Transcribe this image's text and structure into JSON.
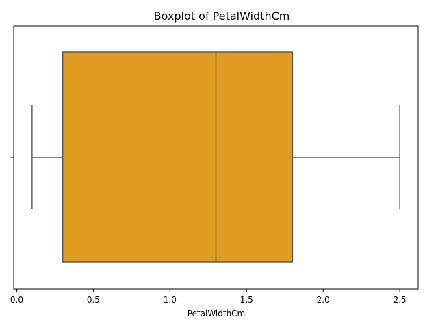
{
  "chart_data": {
    "type": "boxplot",
    "title": "Boxplot of PetalWidthCm",
    "xlabel": "PetalWidthCm",
    "ylabel": "",
    "xlim": [
      -0.02,
      2.62
    ],
    "x_ticks": [
      0.0,
      0.5,
      1.0,
      1.5,
      2.0,
      2.5
    ],
    "x_tick_labels": [
      "0.0",
      "0.5",
      "1.0",
      "1.5",
      "2.0",
      "2.5"
    ],
    "orientation": "horizontal",
    "grid": false,
    "legend": "none",
    "box": {
      "whisker_low": 0.1,
      "q1": 0.3,
      "median": 1.3,
      "q3": 1.8,
      "whisker_high": 2.5,
      "fliers": []
    },
    "colors": {
      "box_fill": "#E09D21",
      "line": "#555555",
      "axis": "#000000"
    }
  }
}
